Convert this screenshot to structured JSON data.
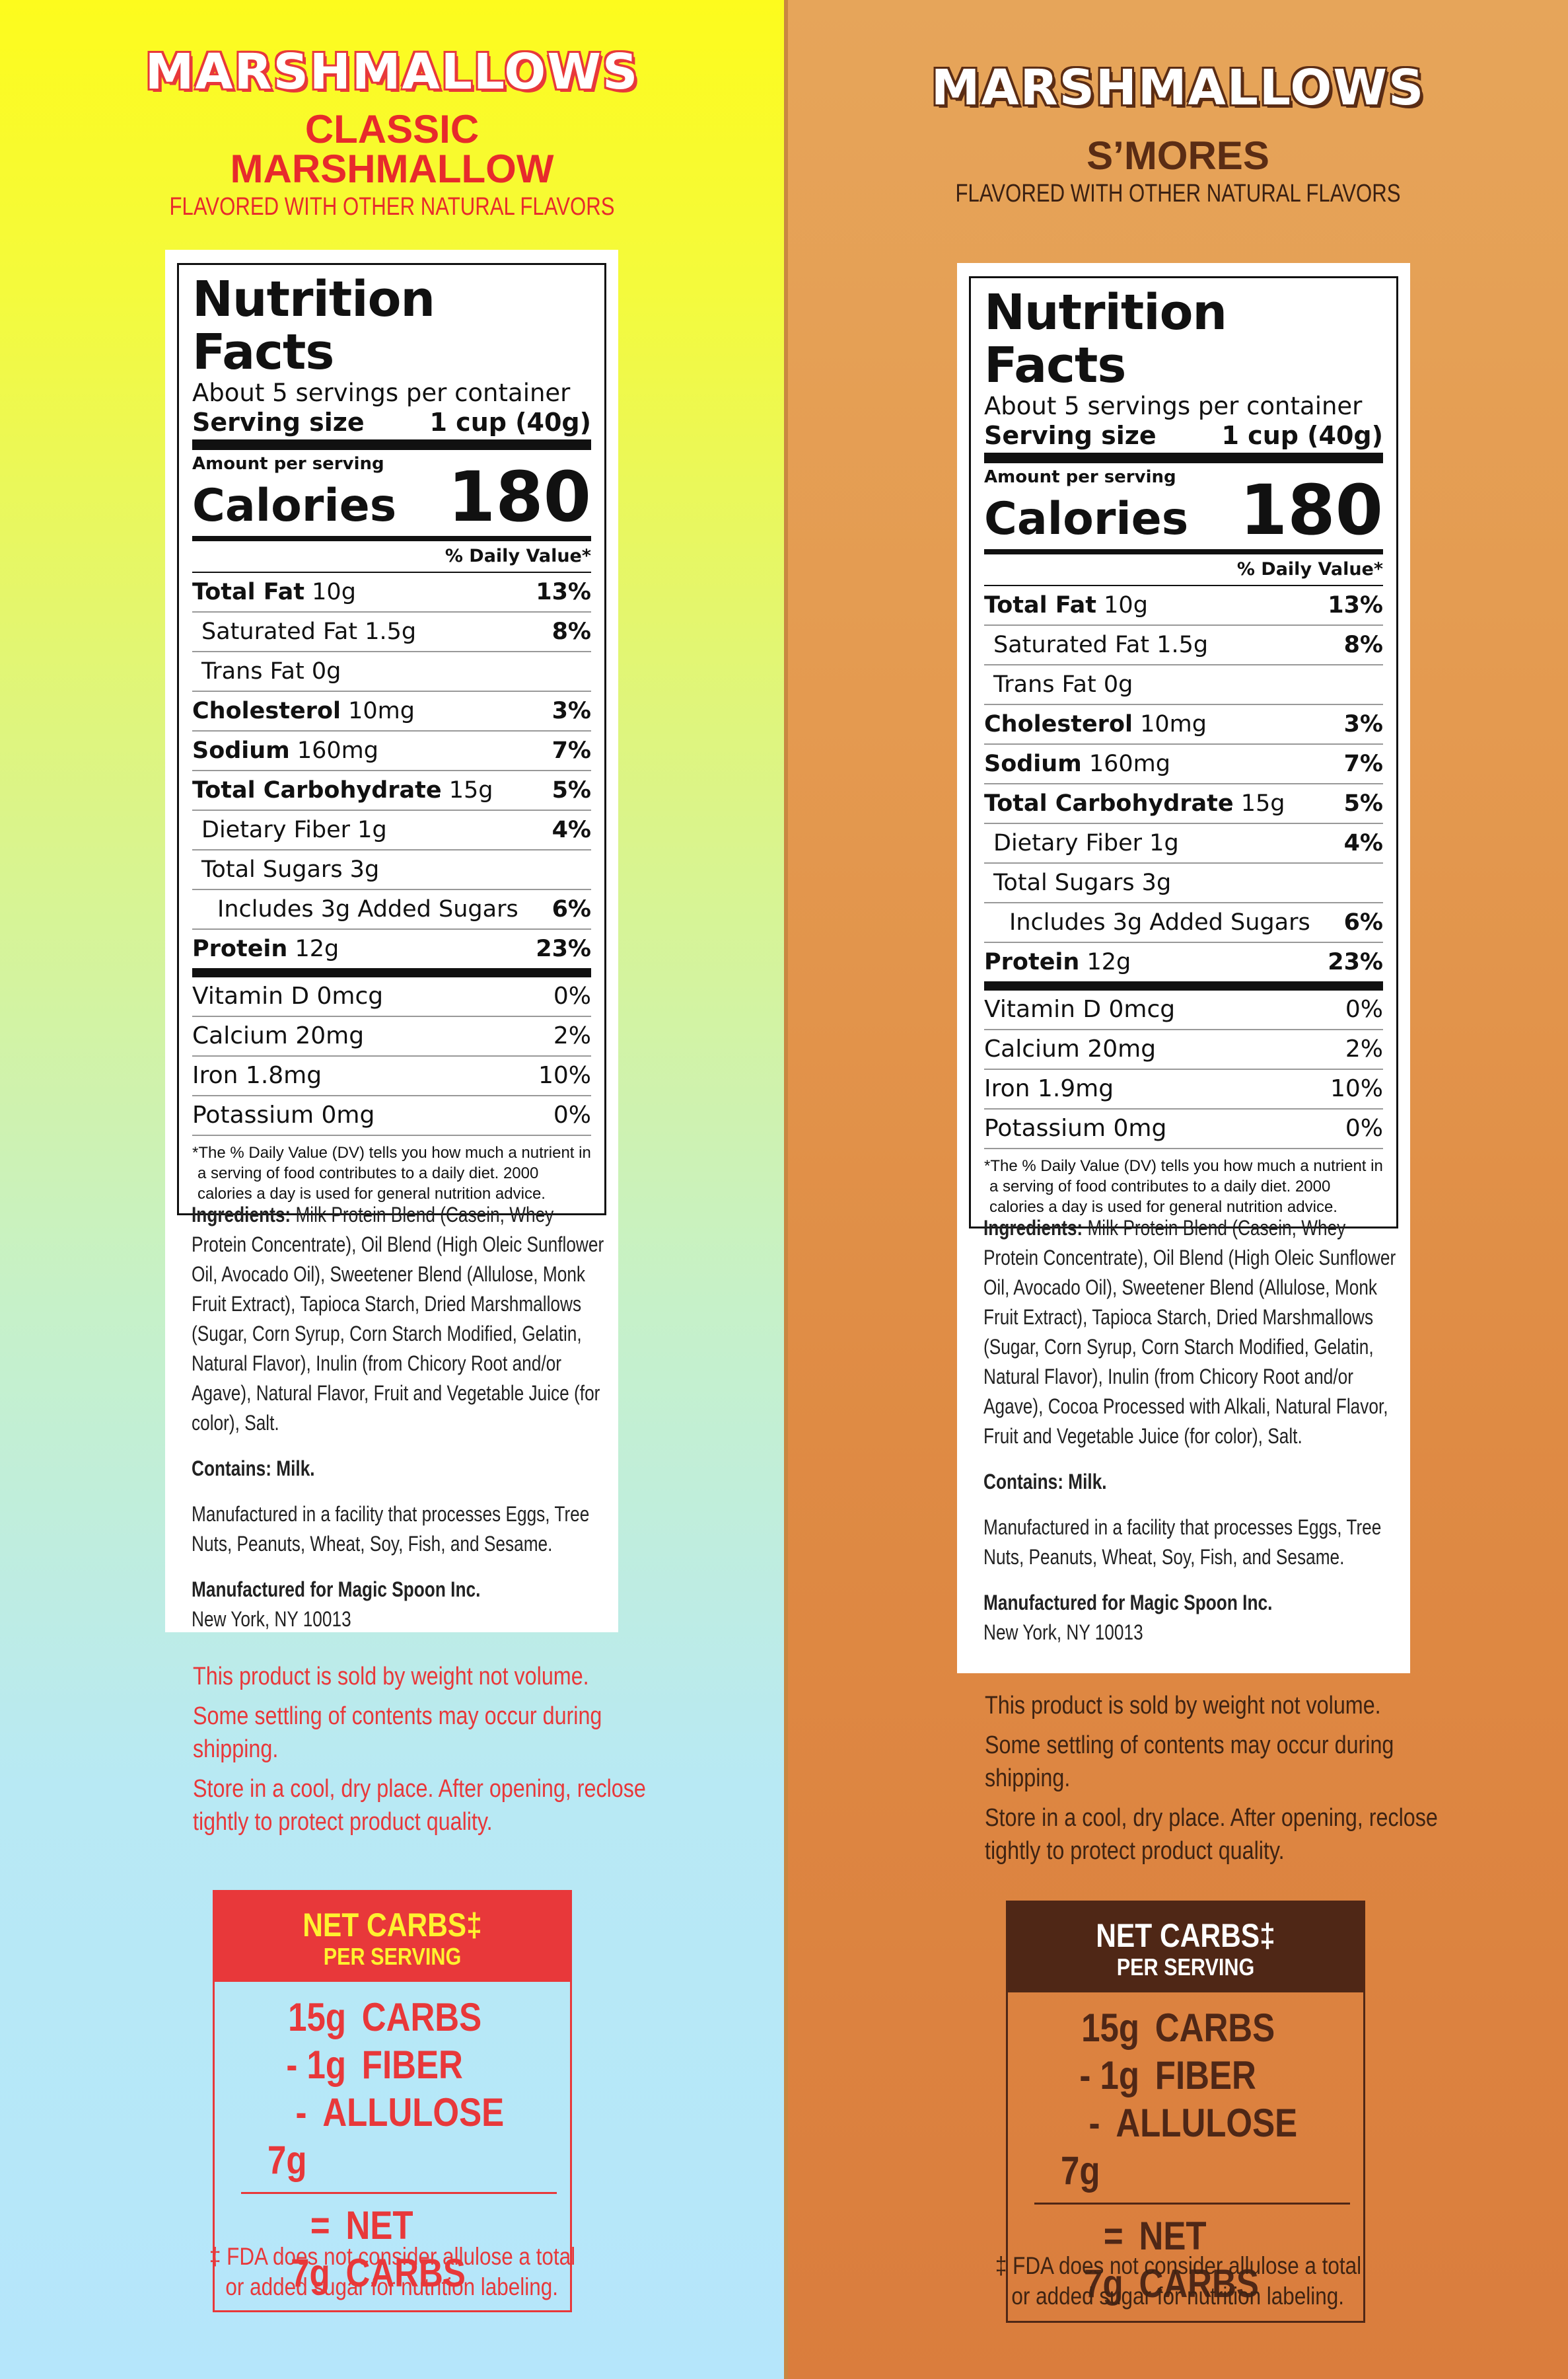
{
  "panels": [
    {
      "brand": "MARSHMALLOWS",
      "flavor_lines": [
        "CLASSIC",
        "MARSHMALLOW"
      ],
      "flavor_sub": "FLAVORED WITH OTHER NATURAL FLAVORS",
      "nutrition": {
        "title": "Nutrition Facts",
        "servings": "About 5 servings per container",
        "serving_label": "Serving size",
        "serving_value": "1 cup (40g)",
        "amount_label": "Amount per serving",
        "calories_label": "Calories",
        "calories_value": "180",
        "dv_header": "% Daily Value*",
        "rows": [
          {
            "name": "Total Fat",
            "amount": "10g",
            "dv": "13%"
          },
          {
            "name": "Saturated Fat 1.5g",
            "amount": "",
            "dv": "8%"
          },
          {
            "name": "Trans Fat 0g",
            "amount": "",
            "dv": ""
          },
          {
            "name": "Cholesterol",
            "amount": "10mg",
            "dv": "3%"
          },
          {
            "name": "Sodium",
            "amount": "160mg",
            "dv": "7%"
          },
          {
            "name": "Total Carbohydrate",
            "amount": "15g",
            "dv": "5%"
          },
          {
            "name": "Dietary Fiber 1g",
            "amount": "",
            "dv": "4%"
          },
          {
            "name": "Total Sugars 3g",
            "amount": "",
            "dv": ""
          },
          {
            "name": "Includes 3g Added Sugars",
            "amount": "",
            "dv": "6%"
          },
          {
            "name": "Protein",
            "amount": "12g",
            "dv": "23%"
          }
        ],
        "vitamins": [
          {
            "name": "Vitamin D 0mcg",
            "dv": "0%"
          },
          {
            "name": "Calcium 20mg",
            "dv": "2%"
          },
          {
            "name": "Iron 1.8mg",
            "dv": "10%"
          },
          {
            "name": "Potassium 0mg",
            "dv": "0%"
          }
        ],
        "footnote": "*The % Daily Value (DV) tells you how much a nutrient in a serving of food contributes to a daily diet. 2000 calories a day is used for general nutrition advice."
      },
      "ingredients_label": "Ingredients:",
      "ingredients": "Milk Protein Blend (Casein, Whey Protein Concentrate), Oil Blend (High Oleic Sunflower Oil, Avocado Oil), Sweetener Blend (Allulose, Monk Fruit Extract), Tapioca Starch, Dried Marshmallows (Sugar, Corn Syrup, Corn Starch Modified, Gelatin, Natural Flavor), Inulin (from Chicory Root and/or Agave), Natural Flavor, Fruit and Vegetable Juice (for color), Salt.",
      "contains": "Contains: Milk.",
      "facility": "Manufactured in a facility that processes Eggs, Tree Nuts, Peanuts, Wheat, Soy, Fish, and Sesame.",
      "manufacturer": "Manufactured for Magic Spoon Inc.",
      "address": "New York, NY 10013",
      "notes": [
        "This product is sold by weight not volume.",
        "Some settling of contents may occur during shipping.",
        "Store in a cool, dry place. After opening, reclose tightly to protect product quality."
      ],
      "net_carbs": {
        "title": "NET CARBS‡",
        "subtitle": "PER SERVING",
        "rows": [
          {
            "amount": "15g",
            "label": "CARBS"
          },
          {
            "amount": "- 1g",
            "label": "FIBER"
          },
          {
            "amount": "- 7g",
            "label": "ALLULOSE"
          }
        ],
        "total": {
          "amount": "= 7g",
          "label": "NET CARBS"
        }
      },
      "fda_note_1": "‡ FDA does not consider allulose a total",
      "fda_note_2": "or added sugar for nutrition labeling.",
      "colors": {
        "accent": "#e8383a",
        "highlight": "#fff22f"
      }
    },
    {
      "brand": "MARSHMALLOWS",
      "flavor_lines": [
        "S’MORES"
      ],
      "flavor_sub": "FLAVORED WITH OTHER NATURAL FLAVORS",
      "nutrition": {
        "title": "Nutrition Facts",
        "servings": "About 5 servings per container",
        "serving_label": "Serving size",
        "serving_value": "1 cup (40g)",
        "amount_label": "Amount per serving",
        "calories_label": "Calories",
        "calories_value": "180",
        "dv_header": "% Daily Value*",
        "rows": [
          {
            "name": "Total Fat",
            "amount": "10g",
            "dv": "13%"
          },
          {
            "name": "Saturated Fat 1.5g",
            "amount": "",
            "dv": "8%"
          },
          {
            "name": "Trans Fat 0g",
            "amount": "",
            "dv": ""
          },
          {
            "name": "Cholesterol",
            "amount": "10mg",
            "dv": "3%"
          },
          {
            "name": "Sodium",
            "amount": "160mg",
            "dv": "7%"
          },
          {
            "name": "Total Carbohydrate",
            "amount": "15g",
            "dv": "5%"
          },
          {
            "name": "Dietary Fiber 1g",
            "amount": "",
            "dv": "4%"
          },
          {
            "name": "Total Sugars 3g",
            "amount": "",
            "dv": ""
          },
          {
            "name": "Includes 3g Added Sugars",
            "amount": "",
            "dv": "6%"
          },
          {
            "name": "Protein",
            "amount": "12g",
            "dv": "23%"
          }
        ],
        "vitamins": [
          {
            "name": "Vitamin D 0mcg",
            "dv": "0%"
          },
          {
            "name": "Calcium 20mg",
            "dv": "2%"
          },
          {
            "name": "Iron 1.9mg",
            "dv": "10%"
          },
          {
            "name": "Potassium 0mg",
            "dv": "0%"
          }
        ],
        "footnote": "*The % Daily Value (DV) tells you how much a nutrient in a serving of food contributes to a daily diet. 2000 calories a day is used for general nutrition advice."
      },
      "ingredients_label": "Ingredients:",
      "ingredients": "Milk Protein Blend (Casein, Whey Protein Concentrate), Oil Blend (High Oleic Sunflower Oil, Avocado Oil), Sweetener Blend (Allulose, Monk Fruit Extract), Tapioca Starch, Dried Marshmallows (Sugar, Corn Syrup, Corn Starch Modified, Gelatin, Natural Flavor), Inulin (from Chicory Root and/or Agave), Cocoa Processed with Alkali, Natural Flavor, Fruit and Vegetable Juice (for color), Salt.",
      "contains": "Contains: Milk.",
      "facility": "Manufactured in a facility that processes Eggs, Tree Nuts, Peanuts, Wheat, Soy, Fish, and Sesame.",
      "manufacturer": "Manufactured for Magic Spoon Inc.",
      "address": "New York, NY 10013",
      "notes": [
        "This product is sold by weight not volume.",
        "Some settling of contents may occur during shipping.",
        "Store in a cool, dry place. After opening, reclose tightly to protect product quality."
      ],
      "net_carbs": {
        "title": "NET CARBS‡",
        "subtitle": "PER SERVING",
        "rows": [
          {
            "amount": "15g",
            "label": "CARBS"
          },
          {
            "amount": "- 1g",
            "label": "FIBER"
          },
          {
            "amount": "- 7g",
            "label": "ALLULOSE"
          }
        ],
        "total": {
          "amount": "= 7g",
          "label": "NET CARBS"
        }
      },
      "fda_note_1": "‡ FDA does not consider allulose a total",
      "fda_note_2": "or added sugar for nutrition labeling.",
      "colors": {
        "accent": "#4f2716",
        "highlight": "#ffffff"
      }
    }
  ]
}
